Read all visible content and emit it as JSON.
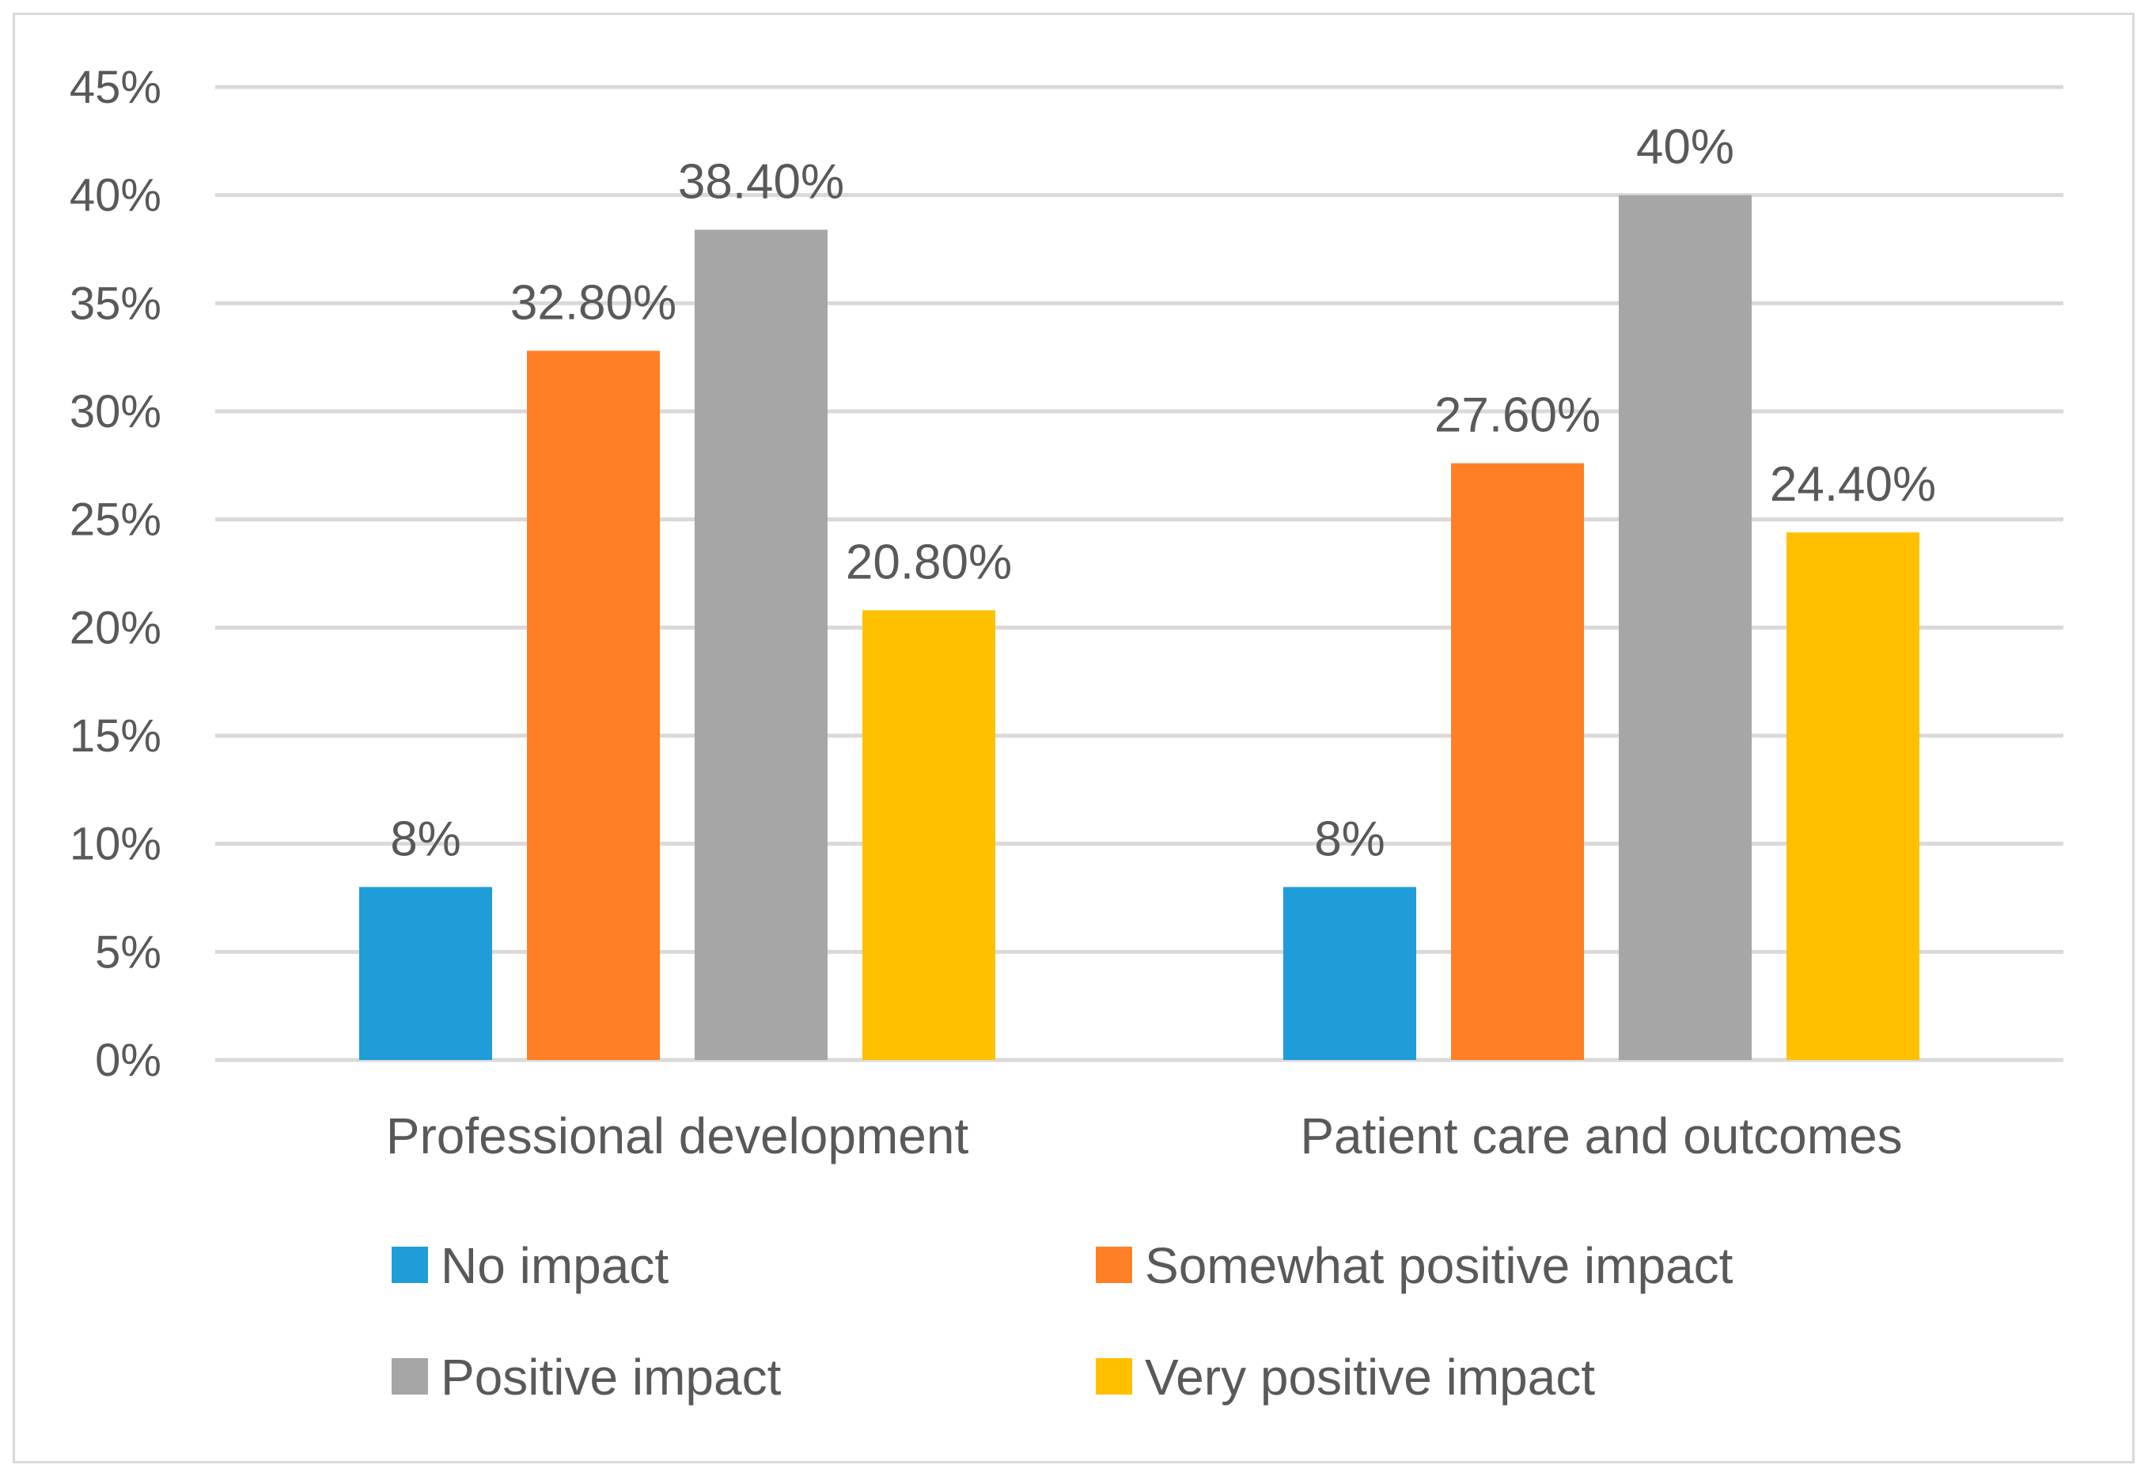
{
  "chart_data": {
    "type": "bar",
    "title": "",
    "xlabel": "",
    "ylabel": "",
    "ylim": [
      0,
      45
    ],
    "yticks": [
      "0%",
      "5%",
      "10%",
      "15%",
      "20%",
      "25%",
      "30%",
      "35%",
      "40%",
      "45%"
    ],
    "grid": true,
    "legend_position": "bottom",
    "categories": [
      "Professional development",
      "Patient care and outcomes"
    ],
    "series": [
      {
        "name": "No impact",
        "color": "#1f9dd9",
        "values": [
          8,
          8
        ],
        "labels": [
          "8%",
          "8%"
        ]
      },
      {
        "name": "Somewhat positive impact",
        "color": "#ff7f27",
        "values": [
          32.8,
          27.6
        ],
        "labels": [
          "32.80%",
          "27.60%"
        ]
      },
      {
        "name": "Positive impact",
        "color": "#a6a6a6",
        "values": [
          38.4,
          40
        ],
        "labels": [
          "38.40%",
          "40%"
        ]
      },
      {
        "name": "Very positive impact",
        "color": "#ffc000",
        "values": [
          20.8,
          24.4
        ],
        "labels": [
          "20.80%",
          "24.40%"
        ]
      }
    ]
  }
}
